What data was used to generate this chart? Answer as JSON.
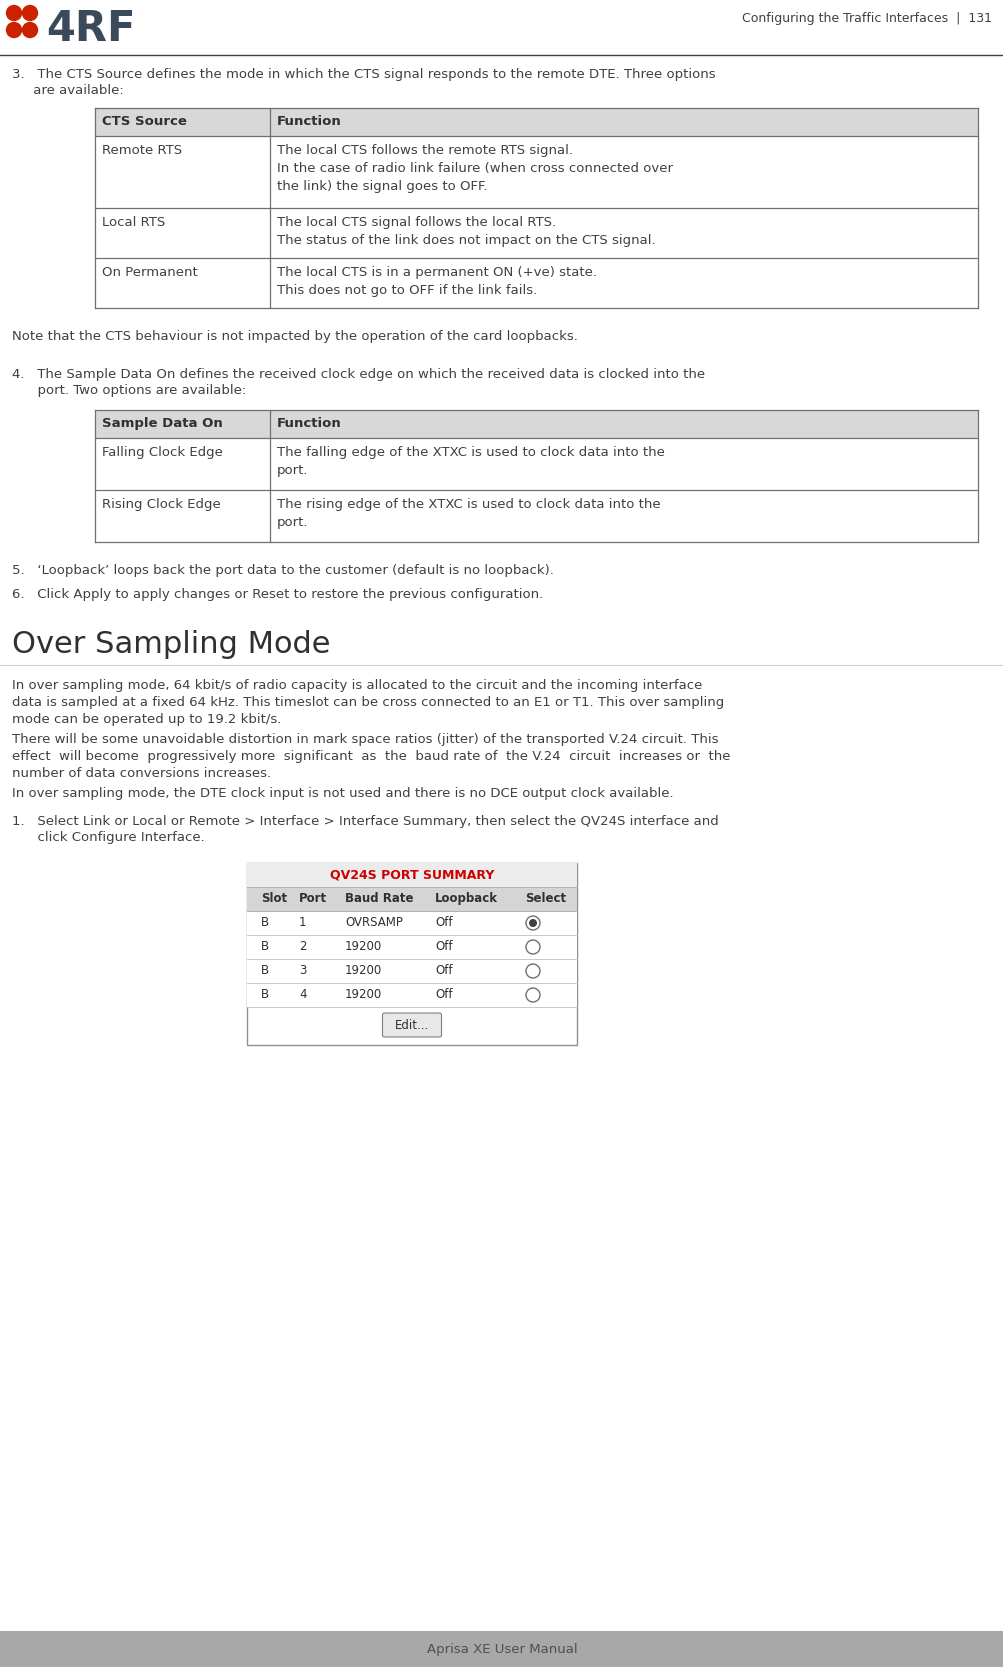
{
  "page_header_right": "Configuring the Traffic Interfaces  |  131",
  "footer_text": "Aprisa XE User Manual",
  "footer_bg": "#a8a8a8",
  "body_text_color": "#404040",
  "section3_line1": "3.   The CTS Source defines the mode in which the CTS signal responds to the remote DTE. Three options",
  "section3_line2": "     are available:",
  "table1_headers": [
    "CTS Source",
    "Function"
  ],
  "table1_rows": [
    [
      "Remote RTS",
      "The local CTS follows the remote RTS signal.\nIn the case of radio link failure (when cross connected over\nthe link) the signal goes to OFF."
    ],
    [
      "Local RTS",
      "The local CTS signal follows the local RTS.\nThe status of the link does not impact on the CTS signal."
    ],
    [
      "On Permanent",
      "The local CTS is in a permanent ON (+ve) state.\nThis does not go to OFF if the link fails."
    ]
  ],
  "note_text": "Note that the CTS behaviour is not impacted by the operation of the card loopbacks.",
  "section4_line1": "4.   The Sample Data On defines the received clock edge on which the received data is clocked into the",
  "section4_line2": "      port. Two options are available:",
  "table2_headers": [
    "Sample Data On",
    "Function"
  ],
  "table2_rows": [
    [
      "Falling Clock Edge",
      "The falling edge of the XTXC is used to clock data into the\nport."
    ],
    [
      "Rising Clock Edge",
      "The rising edge of the XTXC is used to clock data into the\nport."
    ]
  ],
  "section5_text": "5.   ‘Loopback’ loops back the port data to the customer (default is no loopback).",
  "section6_text": "6.   Click Apply to apply changes or Reset to restore the previous configuration.",
  "over_sampling_title": "Over Sampling Mode",
  "over_sampling_para1": "In over sampling mode, 64 kbit/s of radio capacity is allocated to the circuit and the incoming interface\ndata is sampled at a fixed 64 kHz. This timeslot can be cross connected to an E1 or T1. This over sampling\nmode can be operated up to 19.2 kbit/s.",
  "over_sampling_para2": "There will be some unavoidable distortion in mark space ratios (jitter) of the transported V.24 circuit. This\neffect  will become  progressively more  significant  as  the  baud rate of  the V.24  circuit  increases or  the\nnumber of data conversions increases.",
  "over_sampling_para3": "In over sampling mode, the DTE clock input is not used and there is no DCE output clock available.",
  "section1_line1": "1.   Select Link or Local or Remote > Interface > Interface Summary, then select the QV24S interface and",
  "section1_line2": "      click Configure Interface.",
  "screenshot_title": "QV24S PORT SUMMARY",
  "screenshot_title_color": "#cc0000",
  "screenshot_headers": [
    "Slot",
    "Port",
    "Baud Rate",
    "Loopback",
    "Select"
  ],
  "screenshot_rows": [
    [
      "B",
      "1",
      "OVRSAMP",
      "Off",
      "filled_radio"
    ],
    [
      "B",
      "2",
      "19200",
      "Off",
      "empty_radio"
    ],
    [
      "B",
      "3",
      "19200",
      "Off",
      "empty_radio"
    ],
    [
      "B",
      "4",
      "19200",
      "Off",
      "empty_radio"
    ]
  ],
  "screenshot_edit_btn": "Edit...",
  "table_header_bg": "#d8d8d8",
  "table_border_color": "#707070",
  "screenshot_bg": "#f0f0f0",
  "screenshot_border": "#909090",
  "logo_color1": "#cc2200",
  "logo_color2": "#cc2200",
  "logo_text_color": "#3a4a5a"
}
